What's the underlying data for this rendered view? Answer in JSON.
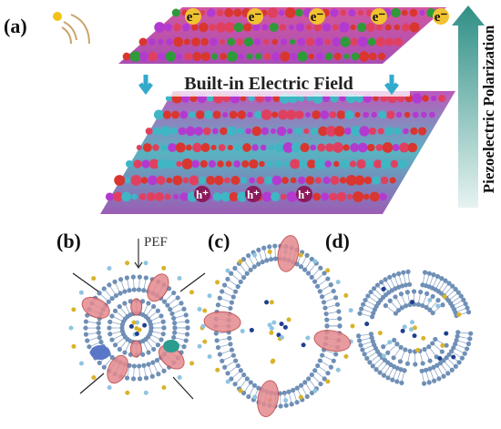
{
  "panels": [
    {
      "label": "(a)",
      "electrons": [
        "e⁻",
        "e⁻",
        "e⁻",
        "e⁻",
        "e⁻"
      ],
      "field": "Built-in Electric Field",
      "polarization": "Piezoelectric Polarization",
      "holes": [
        "h⁺",
        "h⁺",
        "h⁺"
      ]
    },
    {
      "label": "(b)",
      "force": "PEF"
    },
    {
      "label": "(c)"
    },
    {
      "label": "(d)"
    }
  ]
}
